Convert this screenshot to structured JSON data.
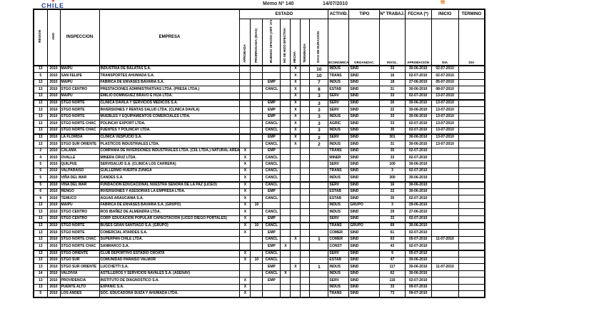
{
  "header": {
    "logo_mark": "★",
    "logo_text": "CHILE",
    "memo_label": "Memo Nº 140",
    "memo_date": "14/07/2010",
    "corner_icon": "❋"
  },
  "colors": {
    "logo_blue": "#1d3f94",
    "logo_red": "#d52b1e",
    "accent_orange": "#e87722"
  },
  "table": {
    "col_groups": {
      "estado": "ESTADO",
      "activid": "ACTIVID.",
      "tipo": "TIPO",
      "trabaj": "Nº TRABAJ.",
      "fecha": "FECHA (*)",
      "inicio": "INICIO",
      "termino": "TERMINO"
    },
    "col_labels": {
      "region": "REGION",
      "ano": "AÑO",
      "inspeccion": "INSPECCION",
      "empresa": "EMPRESA",
      "aprobada": "APROBADA",
      "prorrogada": "PRORROGADA (DIAS)",
      "buenos_oficios": "BUENOS OFICIOS (ART. 374 BIS)",
      "no_efectiva": "NO SE HIZO EFECTIVA",
      "hecha": "HECHA",
      "terminada": "TERMINADA",
      "dias": "DIAS DE DURACION",
      "economica": "ECONOMICA",
      "organizac": "ORGANIZAC.",
      "invol": "INVOL.",
      "aprobacion": "APROBACION",
      "dia_inicio": "DIA",
      "dia_termino": "DIA"
    },
    "row_fields": [
      "region",
      "ano",
      "inspeccion",
      "empresa",
      "aprobada",
      "prorrogada",
      "buenos_oficios",
      "no_efectiva",
      "hecha",
      "terminada",
      "dias",
      "economica",
      "organizac",
      "invol",
      "aprobacion",
      "dia_inicio",
      "dia_termino"
    ],
    "thick_after_rows": [
      5,
      10,
      17,
      23,
      27
    ],
    "rows": [
      [
        "13",
        "2010",
        "MAIPU",
        "INDUSTRIA DE BALATAS S.A.",
        "",
        "",
        "",
        "",
        "X",
        "",
        "10",
        "INDUS",
        "SIND",
        "33",
        "30-06-2010",
        "02-07-2010",
        ""
      ],
      [
        "5",
        "2010",
        "SAN FELIPE",
        "TRANSPORTES AHUMADA S.A.",
        "",
        "",
        "",
        "",
        "X",
        "",
        "10",
        "TRANS",
        "SIND",
        "16",
        "02-07-2010",
        "02-07-2010",
        ""
      ],
      [
        "13",
        "2010",
        "MAIPU",
        "FABRICA DE ENVASES BAVARIA S.A.",
        "",
        "",
        "EMP",
        "",
        "X",
        "",
        "7",
        "INDUS",
        "SIND",
        "18",
        "27-06-2010",
        "05-07-2010",
        ""
      ],
      [
        "13",
        "2010",
        "STGO CENTRO",
        "PRESTACIONES ADMINISTRATIVAS LTDA. (PRESA LTDA.)",
        "",
        "",
        "CANCL",
        "",
        "X",
        "",
        "8",
        "ESTAB",
        "SIND",
        "31",
        "30-06-2010",
        "08-07-2010",
        ""
      ],
      [
        "13",
        "2010",
        "MAIPU",
        "EMILIO DOMINGUEZ BRAVO E HIJA LTDA.",
        "",
        "",
        "",
        "",
        "X",
        "",
        "3",
        "SERV",
        "SIND",
        "33",
        "02-07-2010",
        "13-07-2010",
        ""
      ],
      [
        "13",
        "2010",
        "STGO NORTE",
        "CLINICA DAVILA Y SERVICIOS MEDICOS S.A.",
        "",
        "",
        "EMP",
        "",
        "X",
        "",
        "3",
        "SERV",
        "SIND",
        "26",
        "30-06-2010",
        "13-07-2010",
        ""
      ],
      [
        "13",
        "2010",
        "STGO NORTE",
        "INVERSIONES Y RENTAS SALUD LTDA. (CLINICA DAVILA)",
        "",
        "",
        "EMP",
        "",
        "X",
        "",
        "3",
        "SERV",
        "SIND",
        "22",
        "30-06-2010",
        "13-07-2010",
        ""
      ],
      [
        "13",
        "2010",
        "STGO NORTE",
        "MUEBLES Y EQUIPAMIENTOS COMERCIALES LTDA.",
        "",
        "",
        "EMP",
        "",
        "X",
        "",
        "3",
        "INDUS",
        "SIND",
        "33",
        "30-06-2010",
        "13-07-2010",
        ""
      ],
      [
        "13",
        "2010",
        "STGO NORTE CHAC",
        "POLINCAY EXPORT LTDA.",
        "",
        "",
        "CANCL",
        "",
        "X",
        "",
        "3",
        "AGRIC",
        "SIND",
        "33",
        "02-07-2010",
        "13-07-2010",
        ""
      ],
      [
        "13",
        "2010",
        "STGO NORTE CHAC",
        "FUENTES Y POLINCAY LTDA.",
        "",
        "",
        "CANCL",
        "",
        "X",
        "",
        "3",
        "INDUS",
        "SIND",
        "35",
        "02-07-2010",
        "13-07-2010",
        ""
      ],
      [
        "13",
        "2010",
        "LA FLORIDA",
        "CLINICA VESPUCIO S.A.",
        "",
        "",
        "EMP",
        "",
        "X",
        "",
        "2",
        "SERV",
        "SIND",
        "301",
        "30-06-2010",
        "13-07-2010",
        ""
      ],
      [
        "13",
        "2010",
        "STGO SUR ORIENTE",
        "PLASTICOS INDUSTRIALES LTDA.",
        "",
        "",
        "CANCL",
        "",
        "X",
        "",
        "2",
        "INDUS",
        "SIND",
        "31",
        "30-06-2010",
        "13-07-2010",
        ""
      ],
      [
        "2",
        "2010",
        "CALAMA",
        "COMPAÑIA DE INVERSIONES INDUSTRIALES LTDA. (CIIL LTDA.) NATURAL AREA",
        "X",
        "",
        "EMP",
        "",
        "",
        "",
        "",
        "TRANS",
        "SIND",
        "35",
        "02-07-2010",
        "",
        ""
      ],
      [
        "4",
        "2010",
        "OVALLE",
        "MINERA CRUZ LTDA.",
        "X",
        "",
        "CANCL",
        "",
        "",
        "",
        "",
        "MINER",
        "SIND",
        "33",
        "02-07-2010",
        "",
        ""
      ],
      [
        "5",
        "2010",
        "QUILPUE",
        "SERVISALUD S.A. (CLINICA LOS CARRERA)",
        "X",
        "",
        "CANCL",
        "",
        "",
        "",
        "",
        "SERV",
        "SIND",
        "100",
        "30-06-2010",
        "",
        ""
      ],
      [
        "5",
        "2010",
        "VALPARAISO",
        "GUILLERMO HUERTA ZUÑIGA",
        "X",
        "",
        "CANCL",
        "",
        "",
        "",
        "",
        "TRANS",
        "SIND",
        "3",
        "02-07-2010",
        "",
        ""
      ],
      [
        "5",
        "2010",
        "VIÑA DEL MAR",
        "CANDES S.A.",
        "X",
        "",
        "CANCL",
        "",
        "",
        "",
        "",
        "INDUS",
        "SIND",
        "300",
        "30-06-2010",
        "",
        ""
      ],
      [
        "5",
        "2010",
        "VIÑA DEL MAR",
        "FUNDACION EDUCACIONAL NUESTRA SEÑORA DE LA PAZ (LICEO)",
        "X",
        "",
        "CANCL",
        "",
        "",
        "",
        "",
        "SERV",
        "SIND",
        "16",
        "30-06-2010",
        "",
        ""
      ],
      [
        "6",
        "2010",
        "RENGO",
        "INVERSIONES Y ASESORIAS LA EMPRESA LTDA.",
        "X",
        "",
        "EMP",
        "",
        "",
        "",
        "",
        "ESTAB",
        "SIND",
        "22",
        "30-06-2010",
        "",
        ""
      ],
      [
        "9",
        "2010",
        "TEMUCO",
        "AGUAS ARAUCANIA S.A.",
        "X",
        "",
        "CANCL",
        "",
        "",
        "",
        "",
        "ESTAB",
        "SIND",
        "35",
        "02-07-2010",
        "",
        ""
      ],
      [
        "13",
        "2010",
        "MAIPU",
        "FABRICA DE ENVASES BAVARIA S.A. (GRUPO)",
        "X",
        "10",
        "",
        "",
        "",
        "",
        "",
        "INDUS",
        "GRUPO",
        "3",
        "29-06-2010",
        "",
        ""
      ],
      [
        "13",
        "2010",
        "STGO CENTRO",
        "ROS IBAÑEZ DE ALMENDRA LTDA.",
        "X",
        "",
        "CANCL",
        "",
        "",
        "",
        "",
        "INDUS",
        "SIND",
        "29",
        "27-06-2010",
        "",
        ""
      ],
      [
        "13",
        "2010",
        "STGO CENTRO",
        "CORP. EDUCACION POPULAR CAPACITACION (LICEO DIEGO PORTALES)",
        "X",
        "",
        "EMP",
        "",
        "",
        "",
        "",
        "SERV",
        "SIND",
        "33",
        "02-07-2010",
        "",
        ""
      ],
      [
        "13",
        "2010",
        "STGO NORTE",
        "BUSES GRAN SANTIAGO S.A. (GRUPO)",
        "X",
        "10",
        "CANCL",
        "",
        "",
        "",
        "",
        "TRANS",
        "GRUPO",
        "69",
        "30-06-2010",
        "",
        ""
      ],
      [
        "13",
        "2010",
        "STGO NORTE",
        "COMERCIAL ATARDES S.A.",
        "X",
        "",
        "EMP",
        "",
        "",
        "",
        "",
        "COMER",
        "SIND",
        "61",
        "02-07-2010",
        "",
        ""
      ],
      [
        "13",
        "2010",
        "STGO NORTE CHAC",
        "SUPERPAN CHILE LTDA.",
        "",
        "",
        "CANCL",
        "",
        "X",
        "",
        "1",
        "COMER",
        "SIND",
        "63",
        "05-07-2010",
        "11-07-2010",
        ""
      ],
      [
        "13",
        "2010",
        "STGO NORTE CHAC",
        "SANMARCO S.A.",
        "",
        "",
        "EMP",
        "X",
        "",
        "",
        "",
        "CONST",
        "SIND",
        "43",
        "02-07-2010",
        "",
        ""
      ],
      [
        "13",
        "2010",
        "STGO ORIENTE",
        "CLUB DEPORTIVO ESTADIO CROATA",
        "X",
        "",
        "CANCL",
        "",
        "",
        "",
        "",
        "SERV",
        "SIND",
        "9",
        "05-07-2010",
        "",
        ""
      ],
      [
        "13",
        "2010",
        "STGO SUR",
        "COMUNIDAD PARAISO VALMOR",
        "X",
        "10",
        "CANCL",
        "",
        "",
        "",
        "",
        "ESTAB",
        "SIND",
        "47",
        "30-06-2010",
        "",
        ""
      ],
      [
        "13",
        "2010",
        "STGO SUR ORIENTE",
        "LUCCHETTI S.A.",
        "",
        "",
        "EMP",
        "",
        "X",
        "",
        "1",
        "INDUS",
        "SIND",
        "117",
        "30-06-2010",
        "11-07-2010",
        ""
      ],
      [
        "14",
        "2010",
        "VALDIVIA",
        "ASTILLEROS Y SERVICIOS NAVALES S.A. (ASENAV)",
        "",
        "",
        "CANCL",
        "X",
        "",
        "",
        "",
        "INDUS",
        "SIND",
        "62",
        "30-06-2010",
        "",
        ""
      ],
      [
        "13",
        "2010",
        "PROVIDENCIA",
        "INSTITUTO DE DIAGNOSTICO S.A.",
        "X",
        "",
        "EMP",
        "",
        "",
        "",
        "",
        "SERV",
        "SIND",
        "116",
        "02-07-2010",
        "",
        ""
      ],
      [
        "13",
        "2010",
        "PUENTE ALTO",
        "EXPANIC S.A.",
        "X",
        "",
        "",
        "",
        "",
        "",
        "",
        "INDUS",
        "SIND",
        "33",
        "09-07-2010",
        "",
        ""
      ],
      [
        "5",
        "2010",
        "LOS ANDES",
        "SOC. EDUCADORA SUIZA Y AHUMADA LTDA.",
        "X",
        "",
        "",
        "",
        "",
        "",
        "",
        "TRANS",
        "SIND",
        "73",
        "09-07-2010",
        "",
        ""
      ]
    ]
  }
}
